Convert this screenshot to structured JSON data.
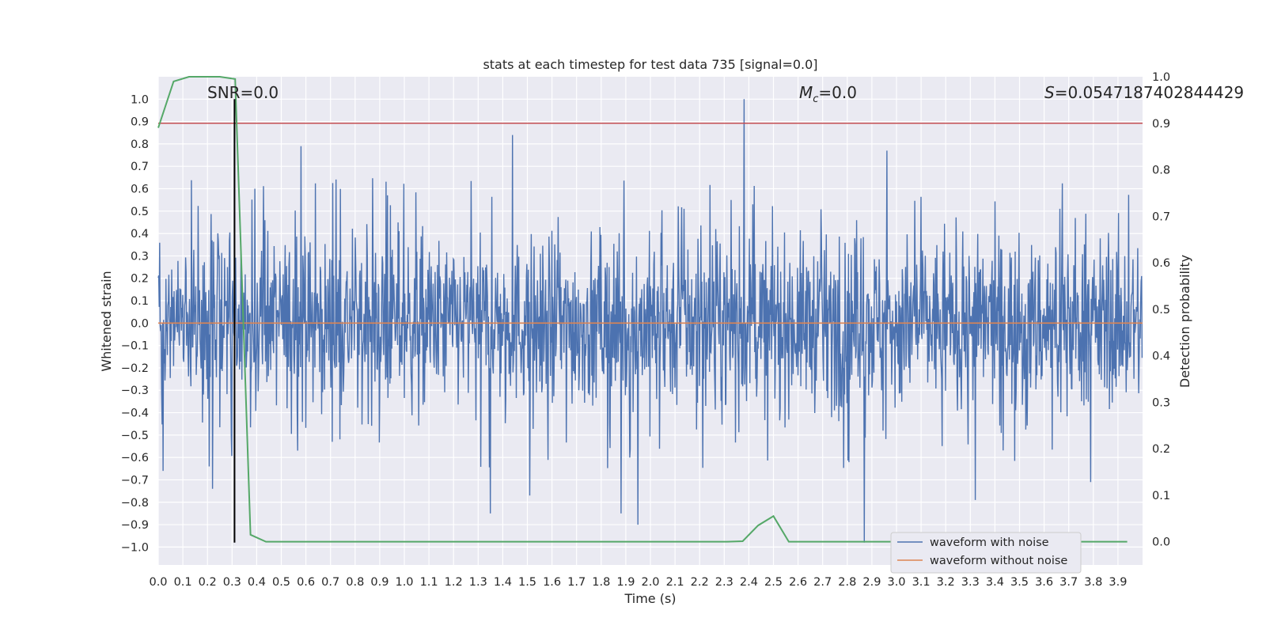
{
  "chart_data": {
    "type": "line",
    "title": "stats at each timestep for test data 735 [signal=0.0]",
    "xlabel": "Time (s)",
    "ylabel": "Whitened strain",
    "y2label": "Detection probability",
    "xlim": [
      0.0,
      4.0
    ],
    "ylim": [
      -1.08,
      1.1
    ],
    "y2lim": [
      -0.05,
      1.0
    ],
    "x_ticks": [
      0.0,
      0.1,
      0.2,
      0.3,
      0.4,
      0.5,
      0.6,
      0.7,
      0.8,
      0.9,
      1.0,
      1.1,
      1.2,
      1.3,
      1.4,
      1.5,
      1.6,
      1.7,
      1.8,
      1.9,
      2.0,
      2.1,
      2.2,
      2.3,
      2.4,
      2.5,
      2.6,
      2.7,
      2.8,
      2.9,
      3.0,
      3.1,
      3.2,
      3.3,
      3.4,
      3.5,
      3.6,
      3.7,
      3.8,
      3.9
    ],
    "x_tick_labels": [
      "0.0",
      "0.1",
      "0.2",
      "0.3",
      "0.4",
      "0.5",
      "0.6",
      "0.7",
      "0.8",
      "0.9",
      "1.0",
      "1.1",
      "1.2",
      "1.3",
      "1.4",
      "1.5",
      "1.6",
      "1.7",
      "1.8",
      "1.9",
      "2.0",
      "2.1",
      "2.2",
      "2.3",
      "2.4",
      "2.5",
      "2.6",
      "2.7",
      "2.8",
      "2.9",
      "3.0",
      "3.1",
      "3.2",
      "3.3",
      "3.4",
      "3.5",
      "3.6",
      "3.7",
      "3.8",
      "3.9"
    ],
    "y_ticks": [
      1.0,
      0.9,
      0.8,
      0.7,
      0.6,
      0.5,
      0.4,
      0.3,
      0.2,
      0.1,
      0.0,
      -0.1,
      -0.2,
      -0.3,
      -0.4,
      -0.5,
      -0.6,
      -0.7,
      -0.8,
      -0.9,
      -1.0
    ],
    "y_tick_labels": [
      "1.0",
      "0.9",
      "0.8",
      "0.7",
      "0.6",
      "0.5",
      "0.4",
      "0.3",
      "0.2",
      "0.1",
      "0.0",
      "−0.1",
      "−0.2",
      "−0.3",
      "−0.4",
      "−0.5",
      "−0.6",
      "−0.7",
      "−0.8",
      "−0.9",
      "−1.0"
    ],
    "y2_ticks": [
      1.0,
      0.9,
      0.8,
      0.7,
      0.6,
      0.5,
      0.4,
      0.3,
      0.2,
      0.1,
      0.0
    ],
    "y2_tick_labels": [
      "1.0",
      "0.9",
      "0.8",
      "0.7",
      "0.6",
      "0.5",
      "0.4",
      "0.3",
      "0.2",
      "0.1",
      "0.0"
    ],
    "annotations": {
      "snr": "SNR=0.0",
      "mc_symbol": "M",
      "mc_sub": "c",
      "mc_value": "=0.0",
      "s_symbol": "S",
      "s_value": "=0.0547187402844429"
    },
    "legend": {
      "placement": "lower-right",
      "entries": [
        {
          "label": "waveform with noise",
          "color": "#4c72b0"
        },
        {
          "label": "waveform without noise",
          "color": "#dd8452"
        }
      ]
    },
    "series": [
      {
        "name": "waveform with noise",
        "axis": "left",
        "color": "#4c72b0",
        "description_range": [
          -1.0,
          1.0
        ],
        "spikes": [
          {
            "x": 0.02,
            "y": -0.66
          },
          {
            "x": 0.22,
            "y": -0.74
          },
          {
            "x": 0.58,
            "y": 0.79
          },
          {
            "x": 1.35,
            "y": -0.85
          },
          {
            "x": 1.44,
            "y": 0.84
          },
          {
            "x": 1.51,
            "y": -0.77
          },
          {
            "x": 1.88,
            "y": -0.85
          },
          {
            "x": 1.95,
            "y": -0.9
          },
          {
            "x": 2.38,
            "y": 1.0
          },
          {
            "x": 2.87,
            "y": -0.98
          },
          {
            "x": 2.96,
            "y": 0.77
          },
          {
            "x": 3.32,
            "y": -0.79
          },
          {
            "x": 3.79,
            "y": -0.71
          }
        ]
      },
      {
        "name": "waveform without noise",
        "axis": "left",
        "color": "#dd8452",
        "x": [
          0.0,
          4.0
        ],
        "y": [
          0.0,
          0.0
        ]
      },
      {
        "name": "detection probability",
        "axis": "right",
        "color": "#55a868",
        "x": [
          0.0,
          0.0625,
          0.125,
          0.1875,
          0.25,
          0.3125,
          0.375,
          0.4375,
          0.5,
          2.3125,
          2.375,
          2.4375,
          2.5,
          2.5625,
          2.625,
          3.9375
        ],
        "y": [
          0.89,
          0.99,
          1.0,
          1.0,
          1.0,
          0.995,
          0.015,
          0.0,
          0.0,
          0.0,
          0.001,
          0.035,
          0.055,
          0.0,
          0.0,
          0.0
        ]
      }
    ],
    "threshold": {
      "axis": "right",
      "value": 0.9,
      "color": "#c44e52"
    },
    "vline": {
      "x": 0.31,
      "ymin": -0.98,
      "ymax": 1.0,
      "color": "#000000"
    }
  }
}
